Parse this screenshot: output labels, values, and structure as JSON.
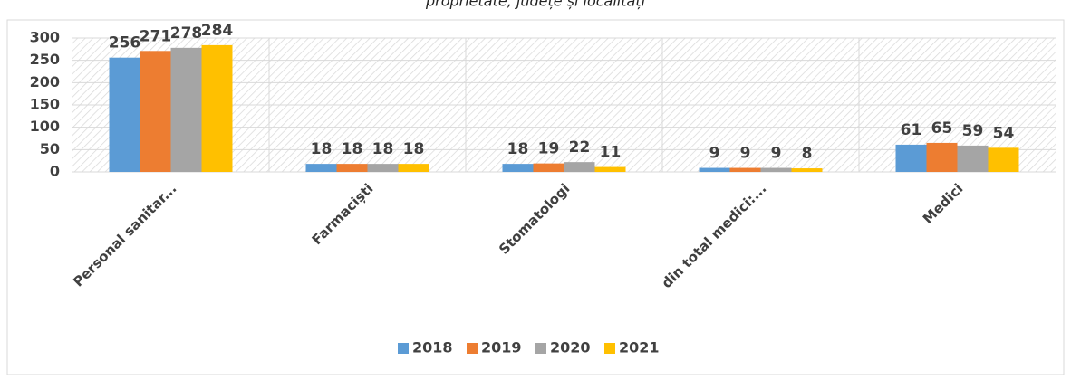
{
  "chart_data": {
    "type": "bar",
    "title": "proprietate, județe și localități",
    "categories": [
      "Personal sanitar...",
      "Farmaciști",
      "Stomatologi",
      "din total medici:...",
      "Medici"
    ],
    "series": [
      {
        "name": "2018",
        "color": "#5b9bd5",
        "values": [
          256,
          18,
          18,
          9,
          61
        ]
      },
      {
        "name": "2019",
        "color": "#ed7d31",
        "values": [
          271,
          18,
          19,
          9,
          65
        ]
      },
      {
        "name": "2020",
        "color": "#a5a5a5",
        "values": [
          278,
          18,
          22,
          9,
          59
        ]
      },
      {
        "name": "2021",
        "color": "#ffc000",
        "values": [
          284,
          18,
          11,
          8,
          54
        ]
      }
    ],
    "ylim": [
      0,
      300
    ],
    "yticks": [
      0,
      50,
      100,
      150,
      200,
      250,
      300
    ],
    "grid": true,
    "legend": "bottom"
  }
}
